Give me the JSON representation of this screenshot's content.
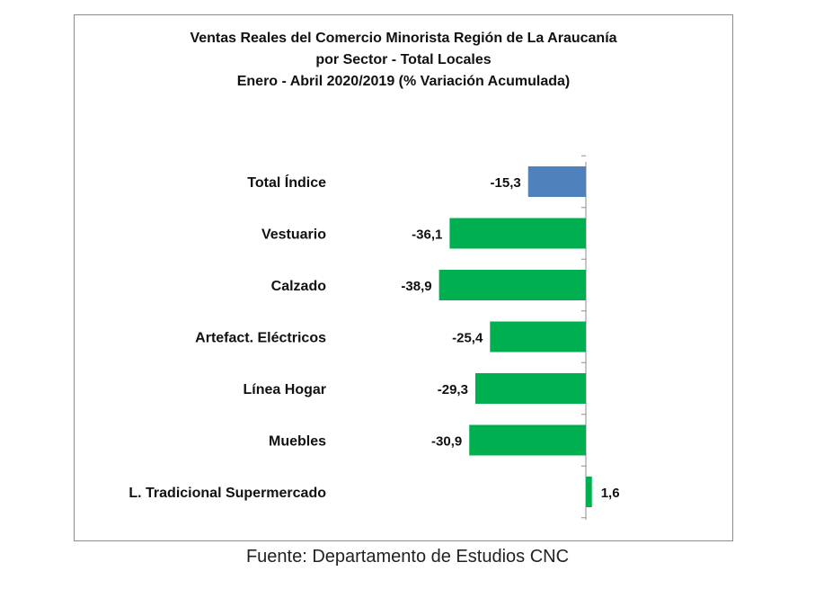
{
  "chart_data": {
    "type": "bar",
    "orientation": "horizontal",
    "title": [
      "Ventas Reales del Comercio Minorista Región de La Araucanía",
      "por Sector - Total Locales",
      "Enero - Abril 2020/2019 (% Variación Acumulada)"
    ],
    "categories": [
      "Total Índice",
      "Vestuario",
      "Calzado",
      "Artefact. Eléctricos",
      "Línea Hogar",
      "Muebles",
      "L. Tradicional Supermercado"
    ],
    "values": [
      -15.3,
      -36.1,
      -38.9,
      -25.4,
      -29.3,
      -30.9,
      1.6
    ],
    "value_labels": [
      "-15,3",
      "-36,1",
      "-38,9",
      "-25,4",
      "-29,3",
      "-30,9",
      "1,6"
    ],
    "bar_colors": [
      "#4f81bd",
      "#00b050",
      "#00b050",
      "#00b050",
      "#00b050",
      "#00b050",
      "#00b050"
    ],
    "xlim": [
      -45,
      5
    ],
    "grid": false,
    "legend": "none"
  },
  "source": "Fuente: Departamento de Estudios CNC"
}
